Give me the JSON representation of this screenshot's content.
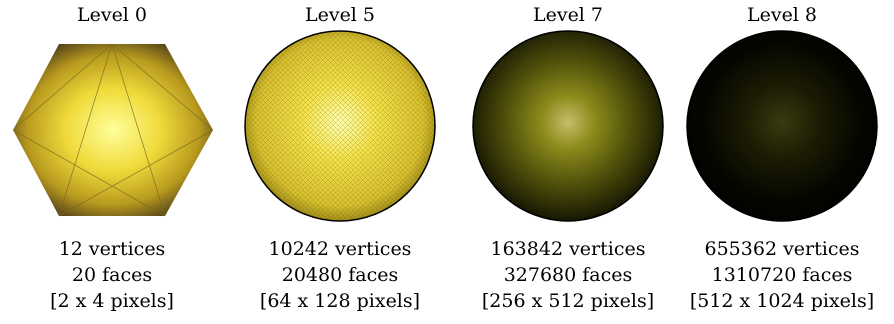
{
  "panels": [
    {
      "title": "Level 0",
      "vertices": "12 vertices",
      "faces": "20 faces",
      "resolution": "[2 x 4 pixels]"
    },
    {
      "title": "Level 5",
      "vertices": "10242 vertices",
      "faces": "20480 faces",
      "resolution": "[64 x 128 pixels]"
    },
    {
      "title": "Level 7",
      "vertices": "163842 vertices",
      "faces": "327680 faces",
      "resolution": "[256 x 512 pixels]"
    },
    {
      "title": "Level 8",
      "vertices": "655362 vertices",
      "faces": "1310720 faces",
      "resolution": "[512 x 1024 pixels]"
    }
  ],
  "colors": {
    "core": "#ffff99",
    "mid": "#e6d02a",
    "edge_level0": "#3a2a18",
    "mesh_level5": "#6b5a00",
    "edge_dark": "#000000"
  }
}
